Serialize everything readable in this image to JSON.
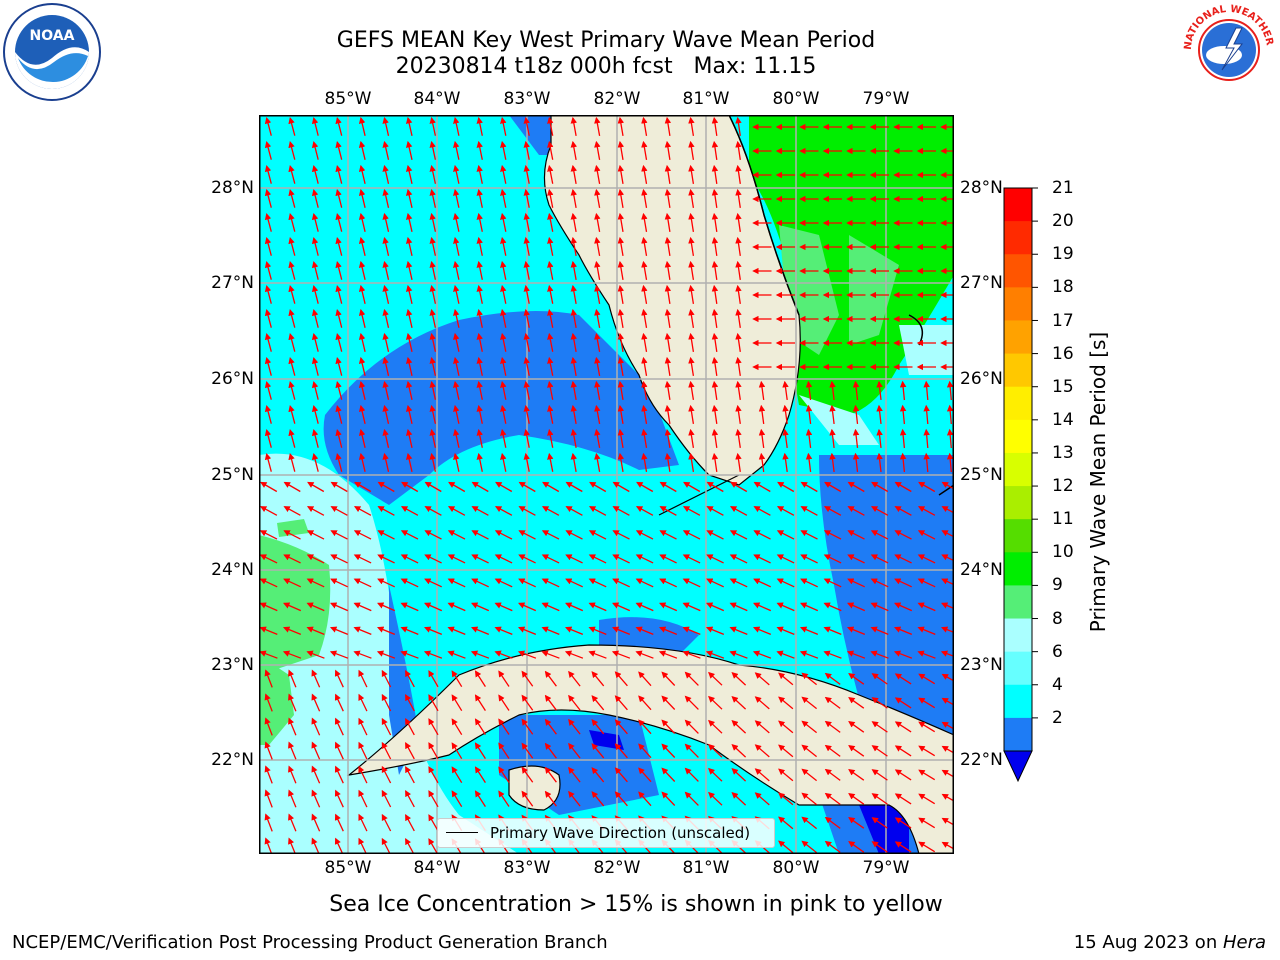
{
  "header": {
    "title_line1": "GEFS MEAN Key West Primary Wave Mean Period",
    "title_line2": "20230814 t18z 000h fcst   Max: 11.15"
  },
  "logos": {
    "left": {
      "icon": "noaa-logo-icon",
      "text": "NOAA"
    },
    "right": {
      "icon": "nws-logo-icon",
      "text": "NATIONAL WEATHER SERVICE"
    }
  },
  "map": {
    "lon_ticks": [
      "85°W",
      "84°W",
      "83°W",
      "82°W",
      "81°W",
      "80°W",
      "79°W"
    ],
    "lat_ticks": [
      "28°N",
      "27°N",
      "26°N",
      "25°N",
      "24°N",
      "23°N",
      "22°N"
    ],
    "legend_label": "Primary Wave Direction (unscaled)",
    "colors": {
      "land": "#efedd9",
      "ocean_2_4": "#1e7cf5",
      "ocean_4_6": "#00ffff",
      "ocean_6_8": "#66ffff",
      "ocean_8_9": "#aaffff",
      "ocean_9_10": "#55ee77",
      "ocean_10_11": "#00ee00",
      "below_2": "#0000ee",
      "arrows": "#ff0000",
      "grid": "#b0b0b0",
      "coast": "#000000"
    }
  },
  "colorbar": {
    "label": "Primary Wave Mean Period [s]",
    "ticks": [
      "21",
      "20",
      "19",
      "18",
      "17",
      "16",
      "15",
      "14",
      "13",
      "12",
      "11",
      "10",
      "9",
      "8",
      "6",
      "4",
      "2"
    ],
    "colors": [
      "#ff0000",
      "#ff2a00",
      "#ff5500",
      "#ff7f00",
      "#ffa200",
      "#ffc800",
      "#ffee00",
      "#ffff00",
      "#d8ff00",
      "#aaee00",
      "#55dd00",
      "#00ee00",
      "#55ee77",
      "#aaffff",
      "#66ffff",
      "#00ffff",
      "#1e7cf5"
    ],
    "extend_color": "#0000ee"
  },
  "footer": {
    "subtitle": "Sea Ice Concentration > 15% is shown in pink to yellow",
    "left": "NCEP/EMC/Verification Post Processing Product Generation Branch",
    "right_date": "15 Aug 2023 on ",
    "right_machine": "Hera"
  }
}
